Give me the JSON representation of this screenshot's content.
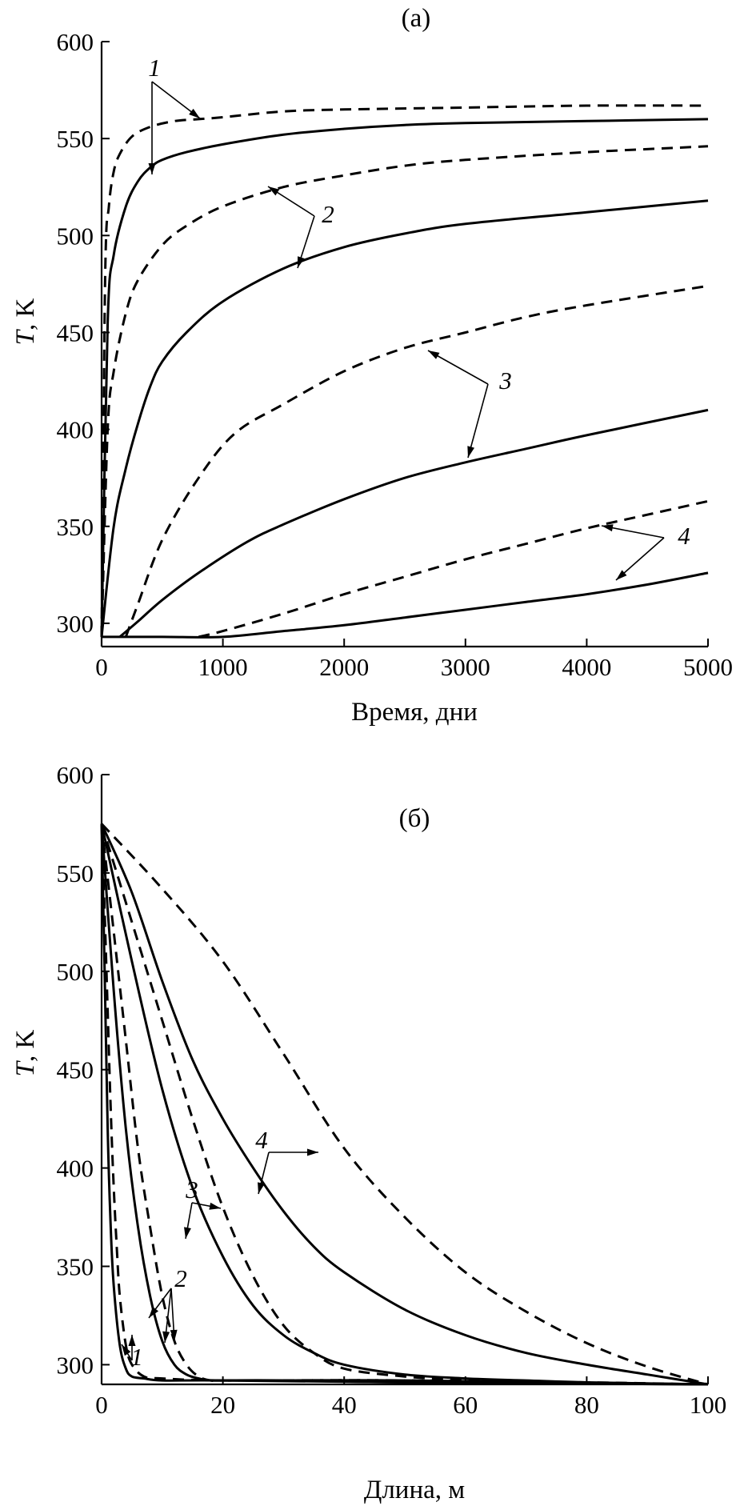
{
  "chart_data": [
    {
      "panel": "(а)",
      "type": "line",
      "xlabel": "Время, дни",
      "ylabel_italic": "T",
      "ylabel_rest": ", K",
      "xlim": [
        0,
        5000
      ],
      "ylim": [
        288,
        600
      ],
      "xticks": [
        0,
        1000,
        2000,
        3000,
        4000,
        5000
      ],
      "yticks": [
        300,
        350,
        400,
        450,
        500,
        550,
        600
      ],
      "grid": false,
      "series": [
        {
          "label": "1",
          "style": "solid",
          "x": [
            0,
            50,
            100,
            200,
            300,
            400,
            500,
            700,
            1000,
            1500,
            2000,
            2500,
            3000,
            4000,
            5000
          ],
          "y": [
            293,
            455,
            490,
            515,
            528,
            535,
            539,
            543,
            547,
            552,
            555,
            557,
            558,
            559,
            560
          ]
        },
        {
          "label": "1",
          "style": "dashed",
          "x": [
            0,
            30,
            60,
            100,
            150,
            250,
            400,
            600,
            800,
            1000,
            1500,
            2000,
            3000,
            4000,
            5000
          ],
          "y": [
            293,
            480,
            515,
            533,
            542,
            551,
            556,
            559,
            560,
            561,
            564,
            565,
            566,
            567,
            567
          ]
        },
        {
          "label": "2",
          "style": "solid",
          "x": [
            0,
            100,
            200,
            300,
            400,
            500,
            700,
            1000,
            1500,
            2000,
            2500,
            3000,
            4000,
            5000
          ],
          "y": [
            293,
            350,
            380,
            403,
            422,
            435,
            450,
            466,
            483,
            494,
            501,
            506,
            512,
            518
          ]
        },
        {
          "label": "2",
          "style": "dashed",
          "x": [
            0,
            50,
            100,
            200,
            300,
            500,
            700,
            1000,
            1500,
            2000,
            2500,
            3000,
            4000,
            5000
          ],
          "y": [
            293,
            400,
            430,
            460,
            477,
            495,
            505,
            515,
            525,
            531,
            536,
            539,
            543,
            546
          ]
        },
        {
          "label": "3",
          "style": "solid",
          "x": [
            150,
            300,
            500,
            800,
            1200,
            1500,
            2000,
            2500,
            3000,
            3500,
            4000,
            5000
          ],
          "y": [
            293,
            301,
            312,
            326,
            342,
            351,
            364,
            375,
            383,
            390,
            397,
            410
          ]
        },
        {
          "label": "3",
          "style": "dashed",
          "x": [
            200,
            300,
            500,
            800,
            1100,
            1500,
            2000,
            2500,
            3000,
            3500,
            4000,
            5000
          ],
          "y": [
            293,
            310,
            343,
            375,
            398,
            413,
            430,
            442,
            450,
            458,
            464,
            474
          ]
        },
        {
          "label": "4",
          "style": "solid",
          "x": [
            0,
            500,
            1000,
            1500,
            2000,
            2500,
            3000,
            3500,
            4000,
            4500,
            5000
          ],
          "y": [
            293,
            293,
            293,
            296,
            299,
            303,
            307,
            311,
            315,
            320,
            326
          ]
        },
        {
          "label": "4",
          "style": "dashed",
          "x": [
            800,
            1000,
            1500,
            2000,
            2500,
            3000,
            3500,
            4000,
            4500,
            5000
          ],
          "y": [
            293,
            296,
            305,
            315,
            324,
            333,
            341,
            349,
            356,
            363
          ]
        }
      ],
      "annotations": [
        "1",
        "2",
        "3",
        "4"
      ]
    },
    {
      "panel": "(б)",
      "type": "line",
      "xlabel": "Длина, м",
      "ylabel_italic": "T",
      "ylabel_rest": ", K",
      "xlim": [
        0,
        100
      ],
      "ylim": [
        290,
        600
      ],
      "xticks": [
        0,
        20,
        40,
        60,
        80,
        100
      ],
      "yticks": [
        300,
        350,
        400,
        450,
        500,
        550,
        600
      ],
      "grid": false,
      "series": [
        {
          "label": "1",
          "style": "solid",
          "x": [
            0,
            0.5,
            1,
            1.5,
            2,
            3,
            4,
            5,
            7,
            10,
            20,
            50,
            100
          ],
          "y": [
            575,
            500,
            420,
            370,
            340,
            310,
            298,
            294,
            293,
            292,
            292,
            291,
            290
          ]
        },
        {
          "label": "1",
          "style": "dashed",
          "x": [
            0,
            0.5,
            1,
            1.5,
            2,
            2.5,
            3,
            4,
            5,
            7,
            10,
            20,
            50,
            100
          ],
          "y": [
            575,
            530,
            480,
            430,
            390,
            360,
            335,
            310,
            300,
            294,
            293,
            292,
            292,
            290
          ]
        },
        {
          "label": "2",
          "style": "solid",
          "x": [
            0,
            2,
            4,
            6,
            8,
            10,
            12,
            14,
            16,
            18,
            20,
            30,
            50,
            100
          ],
          "y": [
            575,
            490,
            420,
            370,
            335,
            312,
            300,
            295,
            293,
            292,
            292,
            292,
            291,
            290
          ]
        },
        {
          "label": "2",
          "style": "dashed",
          "x": [
            0,
            2,
            4,
            6,
            8,
            10,
            12,
            14,
            16,
            18,
            20,
            30,
            50,
            100
          ],
          "y": [
            575,
            520,
            465,
            410,
            370,
            335,
            312,
            300,
            294,
            292,
            292,
            292,
            292,
            290
          ]
        },
        {
          "label": "3",
          "style": "solid",
          "x": [
            0,
            5,
            10,
            15,
            20,
            25,
            30,
            35,
            40,
            50,
            60,
            70,
            80,
            100
          ],
          "y": [
            575,
            505,
            440,
            390,
            355,
            330,
            315,
            306,
            300,
            295,
            293,
            292,
            291,
            290
          ]
        },
        {
          "label": "3",
          "style": "dashed",
          "x": [
            0,
            5,
            10,
            15,
            20,
            25,
            30,
            35,
            40,
            50,
            60,
            70,
            80,
            100
          ],
          "y": [
            575,
            525,
            475,
            425,
            380,
            345,
            320,
            306,
            298,
            294,
            292,
            291,
            291,
            290
          ]
        },
        {
          "label": "4",
          "style": "solid",
          "x": [
            0,
            5,
            10,
            15,
            20,
            25,
            30,
            35,
            40,
            50,
            60,
            70,
            80,
            90,
            100
          ],
          "y": [
            575,
            540,
            495,
            455,
            425,
            400,
            378,
            360,
            347,
            328,
            315,
            306,
            300,
            295,
            290
          ]
        },
        {
          "label": "4",
          "style": "dashed",
          "x": [
            0,
            10,
            20,
            30,
            40,
            50,
            60,
            70,
            80,
            90,
            100
          ],
          "y": [
            575,
            542,
            505,
            458,
            410,
            375,
            347,
            327,
            311,
            299,
            290
          ]
        }
      ],
      "annotations": [
        "1",
        "2",
        "3",
        "4"
      ]
    }
  ]
}
